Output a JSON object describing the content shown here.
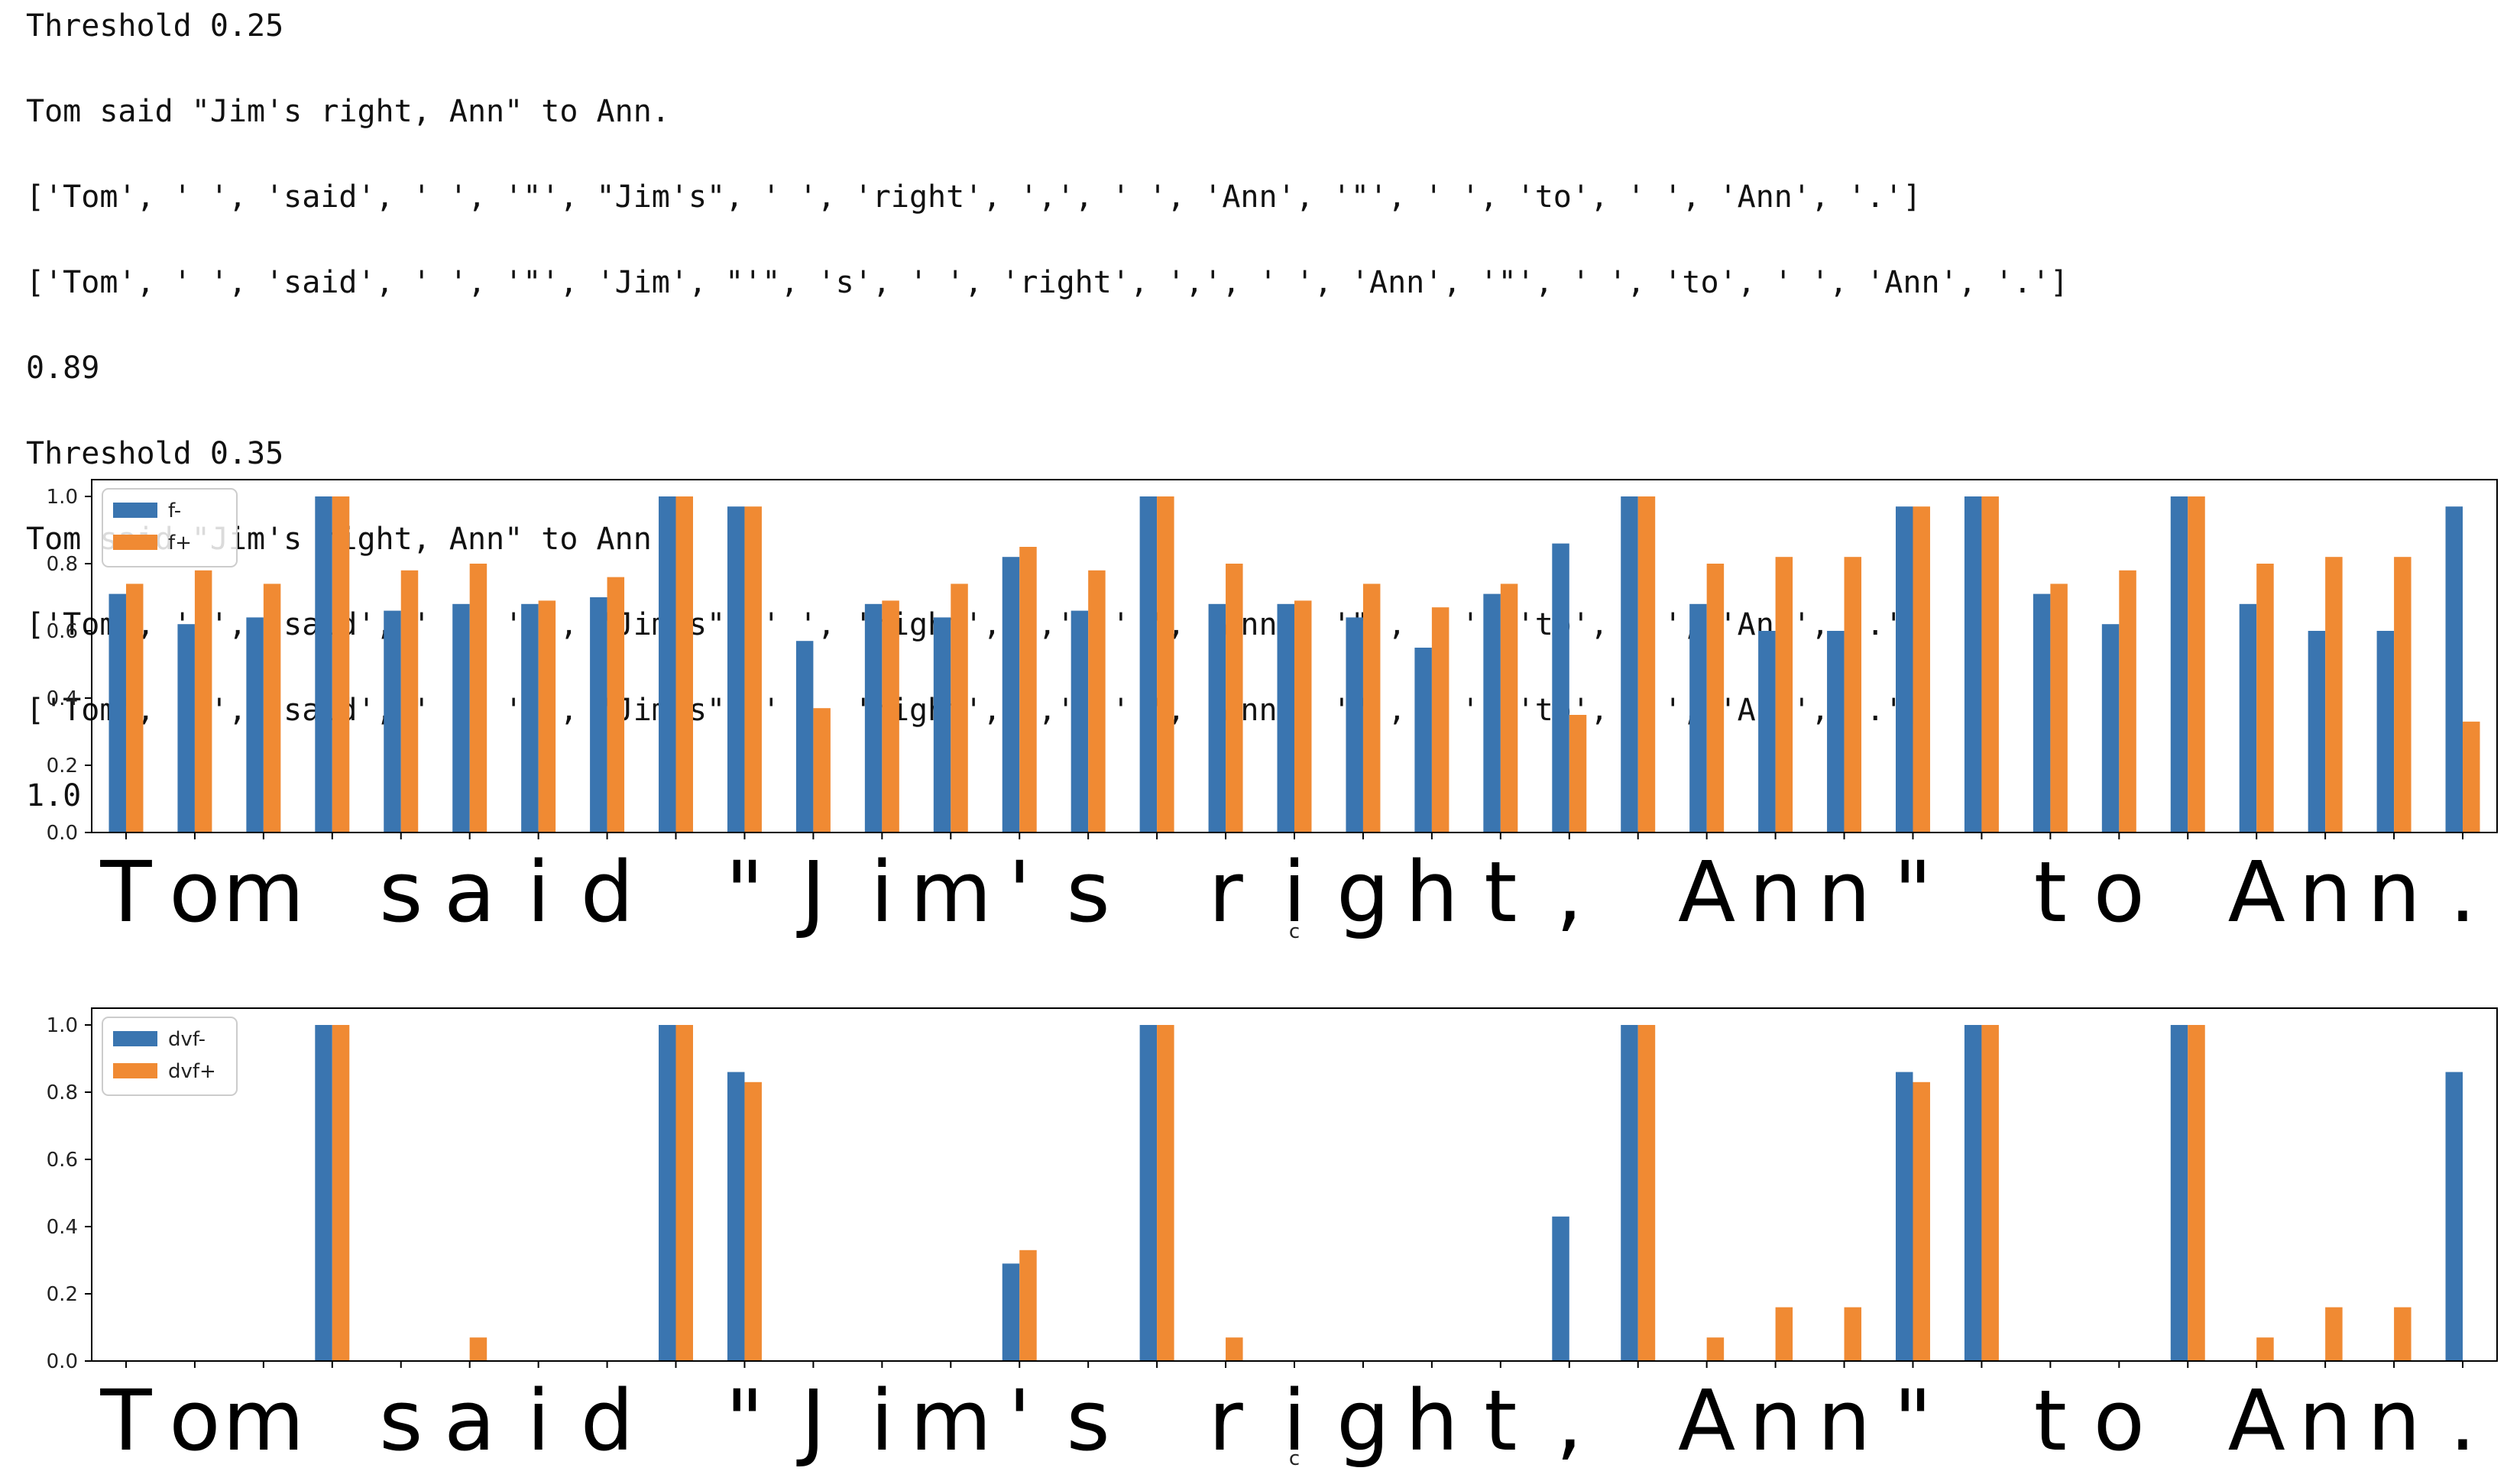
{
  "console": {
    "lines": [
      "Threshold 0.25",
      "Tom said \"Jim's right, Ann\" to Ann.",
      "['Tom', ' ', 'said', ' ', '\"', \"Jim's\", ' ', 'right', ',', ' ', 'Ann', '\"', ' ', 'to', ' ', 'Ann', '.']",
      "['Tom', ' ', 'said', ' ', '\"', 'Jim', \"'\", 's', ' ', 'right', ',', ' ', 'Ann', '\"', ' ', 'to', ' ', 'Ann', '.']",
      "0.89",
      "Threshold 0.35",
      "Tom said \"Jim's right, Ann\" to Ann.",
      "['Tom', ' ', 'said', ' ', '\"', \"Jim's\", ' ', 'right', ',', ' ', 'Ann', '\"', ' ', 'to', ' ', 'Ann', '.']",
      "['Tom', ' ', 'said', ' ', '\"', \"Jim's\", ' ', 'right', ',', ' ', 'Ann', '\"', ' ', 'to', ' ', 'Ann', '.']",
      "1.0"
    ]
  },
  "colors": {
    "minus": "#3a75b0",
    "plus": "#f08a33"
  },
  "chart_data": [
    {
      "type": "bar",
      "categories": [
        "T",
        "o",
        "m",
        " ",
        "s",
        "a",
        "i",
        "d",
        " ",
        "\"",
        "J",
        "i",
        "m",
        "'",
        "s",
        " ",
        "r",
        "i",
        "g",
        "h",
        "t",
        ",",
        " ",
        "A",
        "n",
        "n",
        "\"",
        " ",
        "t",
        "o",
        " ",
        "A",
        "n",
        "n",
        "."
      ],
      "series": [
        {
          "name": "f-",
          "values": [
            0.71,
            0.62,
            0.64,
            1.0,
            0.66,
            0.68,
            0.68,
            0.7,
            1.0,
            0.97,
            0.57,
            0.68,
            0.64,
            0.82,
            0.66,
            1.0,
            0.68,
            0.68,
            0.64,
            0.55,
            0.71,
            0.86,
            1.0,
            0.68,
            0.6,
            0.6,
            0.97,
            1.0,
            0.71,
            0.62,
            1.0,
            0.68,
            0.6,
            0.6,
            0.97
          ]
        },
        {
          "name": "f+",
          "values": [
            0.74,
            0.78,
            0.74,
            1.0,
            0.78,
            0.8,
            0.69,
            0.76,
            1.0,
            0.97,
            0.37,
            0.69,
            0.74,
            0.85,
            0.78,
            1.0,
            0.8,
            0.69,
            0.74,
            0.67,
            0.74,
            0.35,
            1.0,
            0.8,
            0.82,
            0.82,
            0.97,
            1.0,
            0.74,
            0.78,
            1.0,
            0.8,
            0.82,
            0.82,
            0.33
          ]
        }
      ],
      "xlabel": "c",
      "ylabel": "",
      "ylim": [
        0,
        1.05
      ],
      "yticks": [
        "0.0",
        "0.2",
        "0.4",
        "0.6",
        "0.8",
        "1.0"
      ],
      "grid": false,
      "legend": "top-left"
    },
    {
      "type": "bar",
      "categories": [
        "T",
        "o",
        "m",
        " ",
        "s",
        "a",
        "i",
        "d",
        " ",
        "\"",
        "J",
        "i",
        "m",
        "'",
        "s",
        " ",
        "r",
        "i",
        "g",
        "h",
        "t",
        ",",
        " ",
        "A",
        "n",
        "n",
        "\"",
        " ",
        "t",
        "o",
        " ",
        "A",
        "n",
        "n",
        "."
      ],
      "series": [
        {
          "name": "dvf-",
          "values": [
            0,
            0,
            0,
            1.0,
            0,
            0,
            0,
            0,
            1.0,
            0.86,
            0,
            0,
            0,
            0.29,
            0,
            1.0,
            0,
            0,
            0,
            0,
            0,
            0.43,
            1.0,
            0,
            0,
            0,
            0.86,
            1.0,
            0,
            0,
            1.0,
            0,
            0,
            0,
            0.86
          ]
        },
        {
          "name": "dvf+",
          "values": [
            0,
            0,
            0,
            1.0,
            0,
            0.07,
            0,
            0,
            1.0,
            0.83,
            0,
            0,
            0,
            0.33,
            0,
            1.0,
            0.07,
            0,
            0,
            0,
            0,
            0,
            1.0,
            0.07,
            0.16,
            0.16,
            0.83,
            1.0,
            0,
            0,
            1.0,
            0.07,
            0.16,
            0.16,
            0
          ]
        }
      ],
      "xlabel": "c",
      "ylabel": "",
      "ylim": [
        0,
        1.05
      ],
      "yticks": [
        "0.0",
        "0.2",
        "0.4",
        "0.6",
        "0.8",
        "1.0"
      ],
      "grid": false,
      "legend": "top-left"
    }
  ]
}
